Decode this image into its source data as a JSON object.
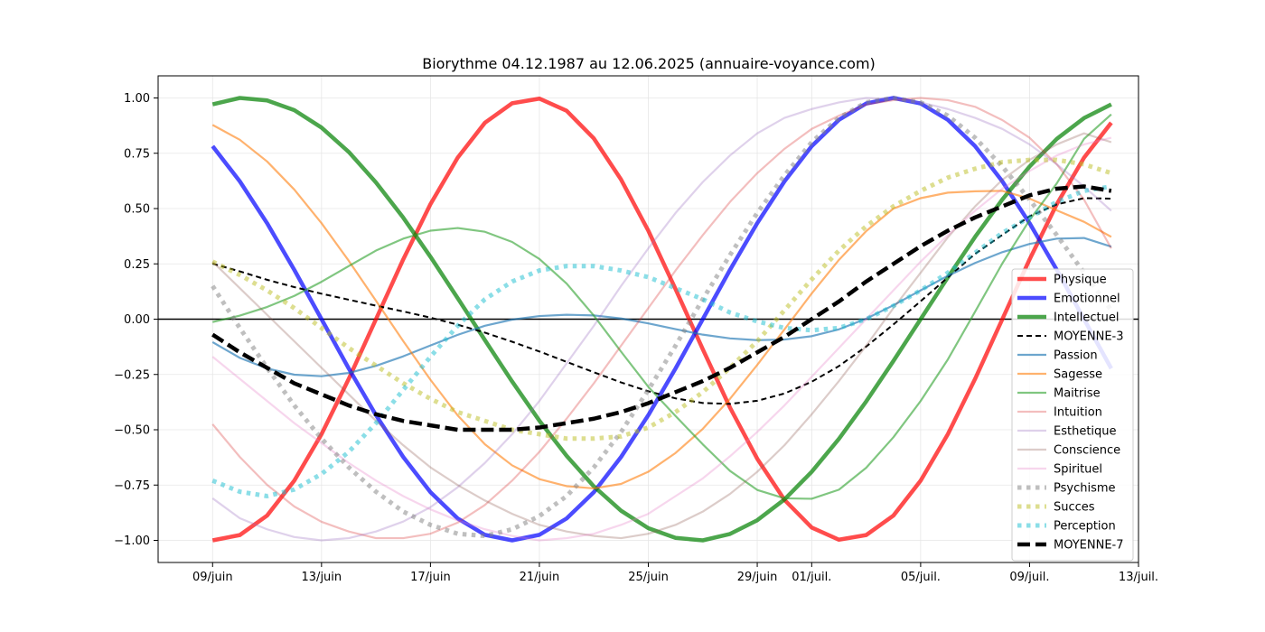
{
  "chart_data": {
    "type": "line",
    "title": "Biorythme 04.12.1987 au 12.06.2025 (annuaire-voyance.com)",
    "xlabel": "",
    "ylabel": "",
    "x": [
      "2025-06-09",
      "2025-06-10",
      "2025-06-11",
      "2025-06-12",
      "2025-06-13",
      "2025-06-14",
      "2025-06-15",
      "2025-06-16",
      "2025-06-17",
      "2025-06-18",
      "2025-06-19",
      "2025-06-20",
      "2025-06-21",
      "2025-06-22",
      "2025-06-23",
      "2025-06-24",
      "2025-06-25",
      "2025-06-26",
      "2025-06-27",
      "2025-06-28",
      "2025-06-29",
      "2025-06-30",
      "2025-07-01",
      "2025-07-02",
      "2025-07-03",
      "2025-07-04",
      "2025-07-05",
      "2025-07-06",
      "2025-07-07",
      "2025-07-08",
      "2025-07-09",
      "2025-07-10",
      "2025-07-11",
      "2025-07-12"
    ],
    "xlim": [
      "2025-06-07",
      "2025-07-13"
    ],
    "ylim": [
      -1.1,
      1.1
    ],
    "x_ticks": [
      "09/juin",
      "13/juin",
      "17/juin",
      "21/juin",
      "25/juin",
      "29/juin",
      "01/juil.",
      "05/juil.",
      "09/juil.",
      "13/juil."
    ],
    "y_ticks": [
      "1.00",
      "0.75",
      "0.50",
      "0.25",
      "0.00",
      "−0.25",
      "−0.50",
      "−0.75",
      "−1.00"
    ],
    "grid": true,
    "zero_line": true,
    "legend_position": "right",
    "series": [
      {
        "name": "Physique",
        "color": "#ff0000",
        "style": "solid-bold",
        "values": [
          -1,
          -0.976,
          -0.888,
          -0.73,
          -0.52,
          -0.27,
          0,
          0.27,
          0.52,
          0.73,
          0.888,
          0.976,
          0.997,
          0.942,
          0.817,
          0.631,
          0.4,
          0.136,
          -0.136,
          -0.4,
          -0.631,
          -0.817,
          -0.942,
          -0.997,
          -0.976,
          -0.888,
          -0.73,
          -0.52,
          -0.27,
          0,
          0.27,
          0.52,
          0.73,
          0.888
        ]
      },
      {
        "name": "Emotionnel",
        "color": "#0000ff",
        "style": "solid-bold",
        "values": [
          0.782,
          0.623,
          0.434,
          0.223,
          0,
          -0.223,
          -0.434,
          -0.623,
          -0.782,
          -0.901,
          -0.975,
          -1,
          -0.975,
          -0.901,
          -0.782,
          -0.623,
          -0.434,
          -0.223,
          0,
          0.223,
          0.434,
          0.623,
          0.782,
          0.901,
          0.975,
          1,
          0.975,
          0.901,
          0.782,
          0.623,
          0.434,
          0.223,
          0,
          -0.223
        ]
      },
      {
        "name": "Intellectuel",
        "color": "#008000",
        "style": "solid-bold",
        "values": [
          0.971,
          1,
          0.989,
          0.945,
          0.866,
          0.756,
          0.618,
          0.459,
          0.282,
          0.095,
          -0.095,
          -0.282,
          -0.459,
          -0.618,
          -0.756,
          -0.866,
          -0.945,
          -0.989,
          -1,
          -0.971,
          -0.909,
          -0.815,
          -0.69,
          -0.541,
          -0.372,
          -0.189,
          0,
          0.189,
          0.372,
          0.541,
          0.69,
          0.815,
          0.909,
          0.971
        ]
      },
      {
        "name": "MOYENNE-3",
        "color": "#000000",
        "style": "dashed",
        "values": [
          0.251,
          0.216,
          0.178,
          0.145,
          0.115,
          0.088,
          0.061,
          0.035,
          0.007,
          -0.025,
          -0.061,
          -0.102,
          -0.146,
          -0.193,
          -0.24,
          -0.286,
          -0.326,
          -0.358,
          -0.379,
          -0.383,
          -0.369,
          -0.336,
          -0.283,
          -0.212,
          -0.124,
          -0.024,
          0.081,
          0.189,
          0.295,
          0.381,
          0.465,
          0.519,
          0.547,
          0.545
        ]
      },
      {
        "name": "Passion",
        "color": "#1f77b4",
        "style": "solid-thin",
        "values": [
          -0.104,
          -0.175,
          -0.223,
          -0.251,
          -0.258,
          -0.243,
          -0.211,
          -0.168,
          -0.119,
          -0.071,
          -0.03,
          -0.002,
          0.014,
          0.02,
          0.017,
          0.003,
          -0.019,
          -0.045,
          -0.07,
          -0.087,
          -0.095,
          -0.092,
          -0.077,
          -0.046,
          0.002,
          0.063,
          0.13,
          0.196,
          0.254,
          0.303,
          0.34,
          0.364,
          0.367,
          0.328
        ]
      },
      {
        "name": "Sagesse",
        "color": "#ff7f0e",
        "style": "solid-thin",
        "values": [
          0.878,
          0.811,
          0.713,
          0.586,
          0.434,
          0.264,
          0.083,
          -0.099,
          -0.274,
          -0.435,
          -0.566,
          -0.661,
          -0.723,
          -0.755,
          -0.765,
          -0.745,
          -0.69,
          -0.605,
          -0.496,
          -0.36,
          -0.207,
          -0.046,
          0.116,
          0.268,
          0.398,
          0.5,
          0.547,
          0.572,
          0.578,
          0.58,
          0.545,
          0.492,
          0.44,
          0.372
        ]
      },
      {
        "name": "Maitrise",
        "color": "#2ca02c",
        "style": "solid-thin",
        "values": [
          -0.013,
          0.016,
          0.055,
          0.105,
          0.169,
          0.24,
          0.31,
          0.364,
          0.4,
          0.412,
          0.395,
          0.349,
          0.272,
          0.161,
          0.016,
          -0.147,
          -0.306,
          -0.438,
          -0.566,
          -0.686,
          -0.772,
          -0.81,
          -0.812,
          -0.771,
          -0.672,
          -0.534,
          -0.37,
          -0.182,
          0.034,
          0.252,
          0.448,
          0.614,
          0.815,
          0.926
        ]
      },
      {
        "name": "Intuition",
        "color": "#d62728",
        "style": "solid-thin",
        "values": [
          -0.475,
          -0.623,
          -0.749,
          -0.847,
          -0.916,
          -0.96,
          -0.99,
          -0.99,
          -0.97,
          -0.92,
          -0.84,
          -0.73,
          -0.6,
          -0.45,
          -0.29,
          -0.12,
          0.05,
          0.22,
          0.38,
          0.53,
          0.66,
          0.77,
          0.86,
          0.92,
          0.97,
          0.99,
          1,
          0.99,
          0.96,
          0.9,
          0.82,
          0.7,
          0.54,
          0.32
        ]
      },
      {
        "name": "Esthetique",
        "color": "#9467bd",
        "style": "solid-thin",
        "values": [
          -0.81,
          -0.9,
          -0.95,
          -0.985,
          -1,
          -0.99,
          -0.96,
          -0.915,
          -0.85,
          -0.76,
          -0.65,
          -0.52,
          -0.37,
          -0.2,
          -0.03,
          0.15,
          0.32,
          0.48,
          0.62,
          0.74,
          0.84,
          0.91,
          0.95,
          0.98,
          1,
          0.995,
          0.98,
          0.95,
          0.91,
          0.86,
          0.79,
          0.7,
          0.6,
          0.49
        ]
      },
      {
        "name": "Conscience",
        "color": "#8c564b",
        "style": "solid-thin",
        "values": [
          0.26,
          0.14,
          0.02,
          -0.1,
          -0.22,
          -0.34,
          -0.46,
          -0.57,
          -0.67,
          -0.75,
          -0.82,
          -0.88,
          -0.93,
          -0.96,
          -0.98,
          -0.99,
          -0.97,
          -0.93,
          -0.87,
          -0.79,
          -0.69,
          -0.57,
          -0.43,
          -0.28,
          -0.12,
          0.05,
          0.21,
          0.37,
          0.51,
          0.63,
          0.72,
          0.79,
          0.84,
          0.8
        ]
      },
      {
        "name": "Spirituel",
        "color": "#e377c2",
        "style": "solid-thin",
        "values": [
          -0.17,
          -0.27,
          -0.37,
          -0.47,
          -0.56,
          -0.65,
          -0.73,
          -0.8,
          -0.86,
          -0.91,
          -0.95,
          -0.98,
          -1,
          -0.99,
          -0.97,
          -0.93,
          -0.88,
          -0.8,
          -0.72,
          -0.62,
          -0.51,
          -0.39,
          -0.26,
          -0.13,
          0,
          0.13,
          0.26,
          0.38,
          0.49,
          0.59,
          0.67,
          0.74,
          0.79,
          0.82
        ]
      },
      {
        "name": "Psychisme",
        "color": "#7f7f7f",
        "style": "dotted-bold",
        "values": [
          0.15,
          -0.04,
          -0.22,
          -0.39,
          -0.54,
          -0.67,
          -0.78,
          -0.87,
          -0.93,
          -0.97,
          -0.98,
          -0.95,
          -0.89,
          -0.8,
          -0.67,
          -0.51,
          -0.32,
          -0.12,
          0.09,
          0.29,
          0.48,
          0.65,
          0.8,
          0.91,
          0.98,
          1,
          0.98,
          0.92,
          0.82,
          0.69,
          0.54,
          0.38,
          0.21,
          0.04
        ]
      },
      {
        "name": "Succes",
        "color": "#bcbd22",
        "style": "dotted-bold",
        "values": [
          0.26,
          0.2,
          0.13,
          0.05,
          -0.04,
          -0.13,
          -0.21,
          -0.29,
          -0.36,
          -0.42,
          -0.46,
          -0.5,
          -0.52,
          -0.54,
          -0.54,
          -0.53,
          -0.49,
          -0.42,
          -0.33,
          -0.22,
          -0.1,
          0.04,
          0.18,
          0.31,
          0.42,
          0.51,
          0.58,
          0.64,
          0.68,
          0.71,
          0.72,
          0.72,
          0.7,
          0.66
        ]
      },
      {
        "name": "Perception",
        "color": "#17becf",
        "style": "dotted-bold",
        "values": [
          -0.73,
          -0.78,
          -0.8,
          -0.77,
          -0.7,
          -0.6,
          -0.47,
          -0.32,
          -0.17,
          -0.03,
          0.09,
          0.17,
          0.22,
          0.24,
          0.24,
          0.22,
          0.19,
          0.14,
          0.09,
          0.03,
          -0.01,
          -0.04,
          -0.05,
          -0.04,
          0,
          0.06,
          0.13,
          0.21,
          0.3,
          0.39,
          0.46,
          0.53,
          0.58,
          0.6
        ]
      },
      {
        "name": "MOYENNE-7",
        "color": "#000000",
        "style": "dashed-bold",
        "values": [
          -0.07,
          -0.15,
          -0.22,
          -0.29,
          -0.34,
          -0.39,
          -0.43,
          -0.46,
          -0.48,
          -0.5,
          -0.5,
          -0.5,
          -0.49,
          -0.47,
          -0.45,
          -0.42,
          -0.38,
          -0.33,
          -0.28,
          -0.22,
          -0.15,
          -0.08,
          0,
          0.08,
          0.17,
          0.25,
          0.33,
          0.4,
          0.46,
          0.51,
          0.56,
          0.59,
          0.6,
          0.58
        ]
      }
    ]
  }
}
